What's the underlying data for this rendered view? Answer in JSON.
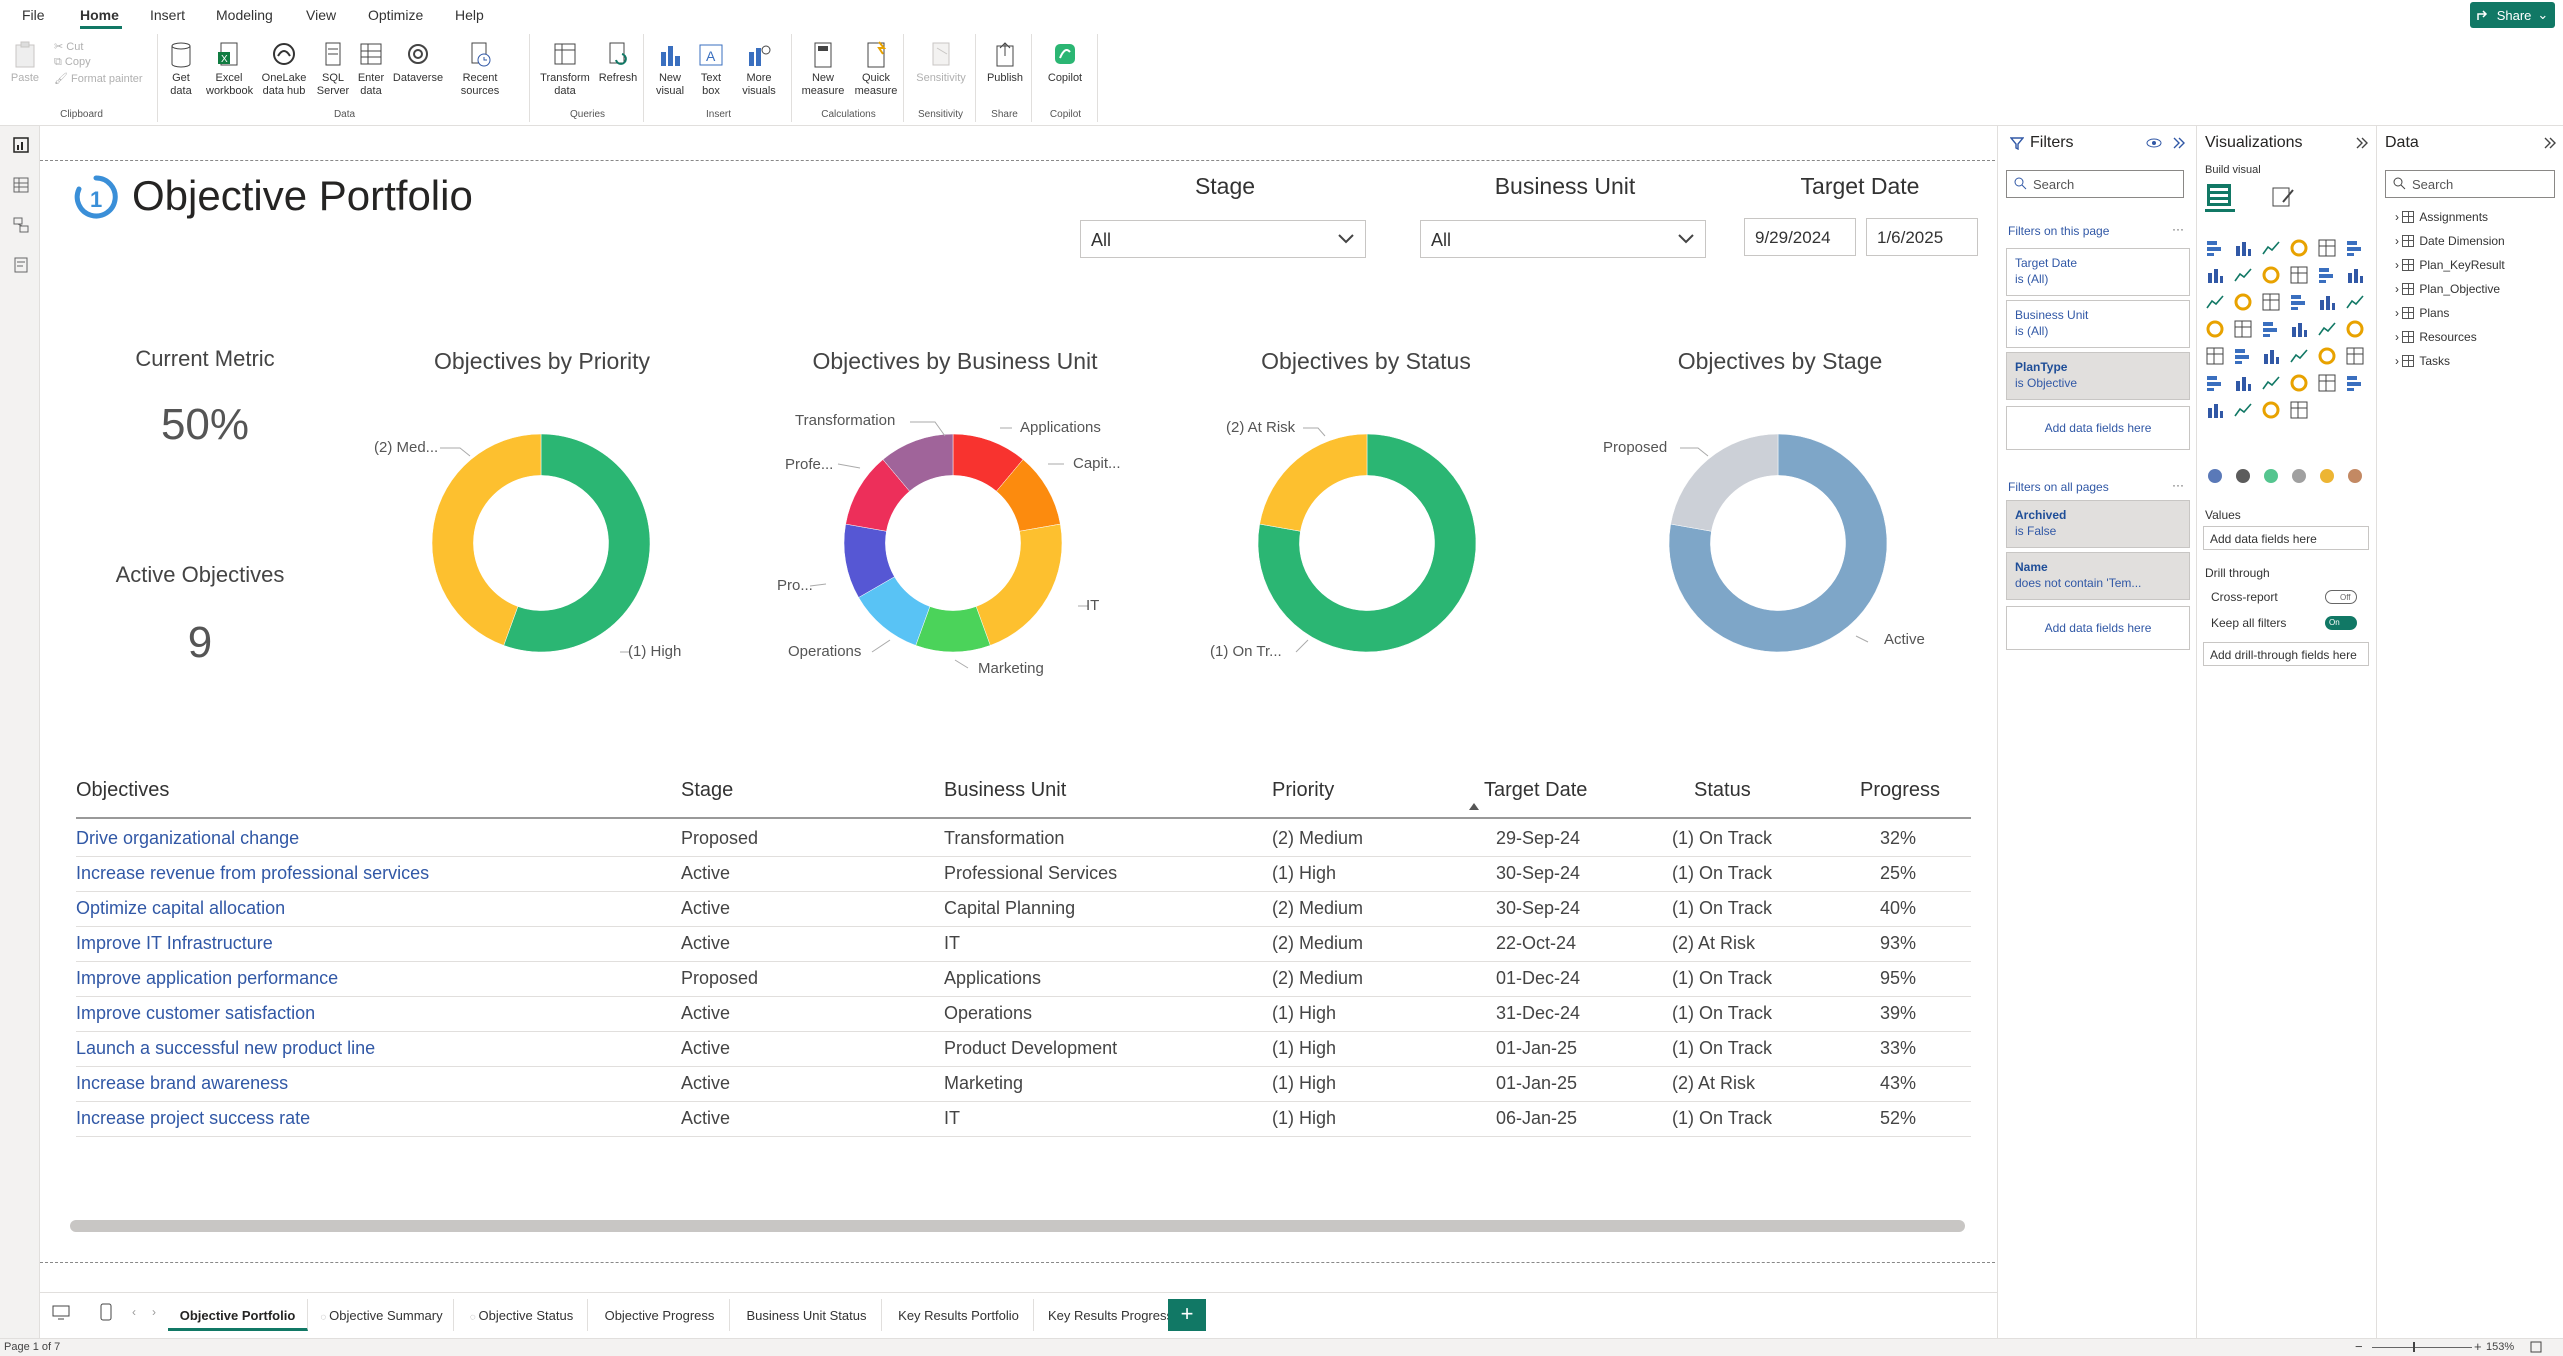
{
  "menubar": {
    "items": [
      "File",
      "Home",
      "Insert",
      "Modeling",
      "View",
      "Optimize",
      "Help"
    ],
    "active": "Home",
    "share_label": "Share"
  },
  "ribbon": {
    "groups": [
      {
        "label": "Clipboard",
        "buttons": [
          "Paste",
          "Cut",
          "Copy",
          "Format painter"
        ]
      },
      {
        "label": "Data",
        "buttons": [
          "Get data",
          "Excel workbook",
          "OneLake data hub",
          "SQL Server",
          "Enter data",
          "Dataverse",
          "Recent sources"
        ]
      },
      {
        "label": "Queries",
        "buttons": [
          "Transform data",
          "Refresh"
        ]
      },
      {
        "label": "Insert",
        "buttons": [
          "New visual",
          "Text box",
          "More visuals"
        ]
      },
      {
        "label": "Calculations",
        "buttons": [
          "New measure",
          "Quick measure"
        ]
      },
      {
        "label": "Sensitivity",
        "buttons": [
          "Sensitivity"
        ]
      },
      {
        "label": "Share",
        "buttons": [
          "Publish"
        ]
      },
      {
        "label": "Copilot",
        "buttons": [
          "Copilot"
        ]
      }
    ]
  },
  "report": {
    "title": "Objective Portfolio",
    "slicers": {
      "stage": {
        "label": "Stage",
        "value": "All"
      },
      "business_unit": {
        "label": "Business Unit",
        "value": "All"
      },
      "target_date": {
        "label": "Target Date",
        "start": "9/29/2024",
        "end": "1/6/2025"
      }
    },
    "cards": {
      "current_metric": {
        "label": "Current Metric",
        "value": "50%"
      },
      "active_objectives": {
        "label": "Active Objectives",
        "value": "9"
      }
    },
    "charts": {
      "priority": {
        "title": "Objectives by Priority",
        "labels": [
          "(2) Med...",
          "(1) High"
        ]
      },
      "business_unit": {
        "title": "Objectives by Business Unit",
        "labels": [
          "Transformation",
          "Applications",
          "Capit...",
          "Profe...",
          "IT",
          "Pro...",
          "Operations",
          "Marketing"
        ]
      },
      "status": {
        "title": "Objectives by Status",
        "labels": [
          "(2) At Risk",
          "(1) On Tr..."
        ]
      },
      "stage": {
        "title": "Objectives by Stage",
        "labels": [
          "Proposed",
          "Active"
        ]
      }
    },
    "table": {
      "columns": [
        "Objectives",
        "Stage",
        "Business Unit",
        "Priority",
        "Target Date",
        "Status",
        "Progress"
      ],
      "rows": [
        [
          "Drive organizational change",
          "Proposed",
          "Transformation",
          "(2) Medium",
          "29-Sep-24",
          "(1) On Track",
          "32%"
        ],
        [
          "Increase revenue from professional services",
          "Active",
          "Professional Services",
          "(1) High",
          "30-Sep-24",
          "(1) On Track",
          "25%"
        ],
        [
          "Optimize capital allocation",
          "Active",
          "Capital Planning",
          "(2) Medium",
          "30-Sep-24",
          "(1) On Track",
          "40%"
        ],
        [
          "Improve IT Infrastructure",
          "Active",
          "IT",
          "(2) Medium",
          "22-Oct-24",
          "(2) At Risk",
          "93%"
        ],
        [
          "Improve application performance",
          "Proposed",
          "Applications",
          "(2) Medium",
          "01-Dec-24",
          "(1) On Track",
          "95%"
        ],
        [
          "Improve customer satisfaction",
          "Active",
          "Operations",
          "(1) High",
          "31-Dec-24",
          "(1) On Track",
          "39%"
        ],
        [
          "Launch a successful new product line",
          "Active",
          "Product Development",
          "(1) High",
          "01-Jan-25",
          "(1) On Track",
          "33%"
        ],
        [
          "Increase brand awareness",
          "Active",
          "Marketing",
          "(1) High",
          "01-Jan-25",
          "(2) At Risk",
          "43%"
        ],
        [
          "Increase project success rate",
          "Active",
          "IT",
          "(1) High",
          "06-Jan-25",
          "(1) On Track",
          "52%"
        ]
      ]
    }
  },
  "chart_data": [
    {
      "type": "pie",
      "title": "Objectives by Priority",
      "categories": [
        "(1) High",
        "(2) Medium"
      ],
      "values": [
        5,
        4
      ],
      "colors": [
        "#2bb673",
        "#fdc02f"
      ]
    },
    {
      "type": "pie",
      "title": "Objectives by Business Unit",
      "categories": [
        "Applications",
        "Capital Planning",
        "IT",
        "Marketing",
        "Operations",
        "Product Development",
        "Professional Services",
        "Transformation"
      ],
      "values": [
        1,
        1,
        2,
        1,
        1,
        1,
        1,
        1
      ],
      "colors": [
        "#f8332f",
        "#fc8b0e",
        "#fdc02f",
        "#4bd35a",
        "#59c3f5",
        "#5657d4",
        "#ed2f5a",
        "#a0649a"
      ]
    },
    {
      "type": "pie",
      "title": "Objectives by Status",
      "categories": [
        "(1) On Track",
        "(2) At Risk"
      ],
      "values": [
        7,
        2
      ],
      "colors": [
        "#2bb673",
        "#fdc02f"
      ]
    },
    {
      "type": "pie",
      "title": "Objectives by Stage",
      "categories": [
        "Active",
        "Proposed"
      ],
      "values": [
        7,
        2
      ],
      "colors": [
        "#7ea6c8",
        "#ccd0d7"
      ]
    }
  ],
  "filters_pane": {
    "title": "Filters",
    "search_placeholder": "Search",
    "on_this_page_label": "Filters on this page",
    "page_filters": [
      {
        "field": "Target Date",
        "state": "is (All)"
      },
      {
        "field": "Business Unit",
        "state": "is (All)"
      },
      {
        "field": "PlanType",
        "state": "is Objective"
      }
    ],
    "on_all_pages_label": "Filters on all pages",
    "all_filters": [
      {
        "field": "Archived",
        "state": "is False"
      },
      {
        "field": "Name",
        "state": "does not contain 'Tem..."
      }
    ],
    "add_fields": "Add data fields here"
  },
  "viz_pane": {
    "title": "Visualizations",
    "build_visual": "Build visual",
    "values_label": "Values",
    "add_data_fields": "Add data fields here",
    "drill_through": "Drill through",
    "cross_report": "Cross-report",
    "cross_report_state": "Off",
    "keep_all_filters": "Keep all filters",
    "keep_all_filters_state": "On",
    "add_drill": "Add drill-through fields here"
  },
  "data_pane": {
    "title": "Data",
    "search_placeholder": "Search",
    "tables": [
      "Assignments",
      "Date Dimension",
      "Plan_KeyResult",
      "Plan_Objective",
      "Plans",
      "Resources",
      "Tasks"
    ]
  },
  "tabs": [
    "Objective Portfolio",
    "Objective Summary",
    "Objective Status",
    "Objective Progress",
    "Business Unit Status",
    "Key Results Portfolio",
    "Key Results Progress"
  ],
  "active_tab": "Objective Portfolio",
  "status": {
    "page": "Page 1 of 7",
    "zoom": "153%"
  }
}
